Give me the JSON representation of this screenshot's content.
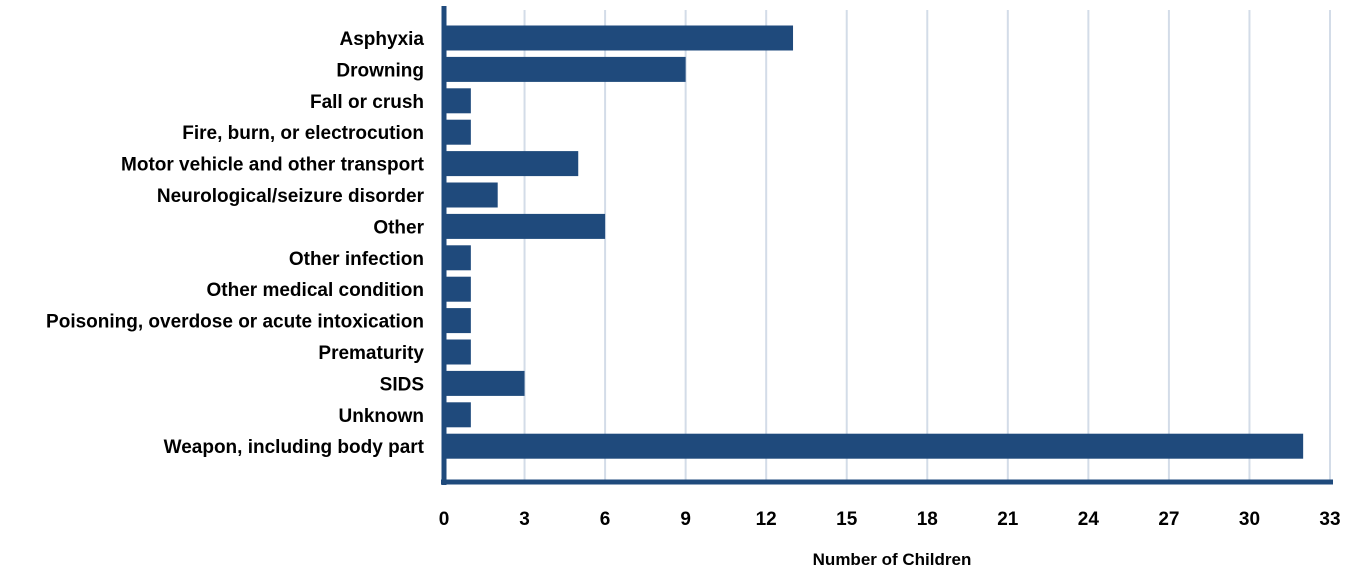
{
  "chart_data": {
    "type": "bar",
    "orientation": "horizontal",
    "categories": [
      "Asphyxia",
      "Drowning",
      "Fall or crush",
      "Fire, burn, or electrocution",
      "Motor vehicle and other transport",
      "Neurological/seizure disorder",
      "Other",
      "Other infection",
      "Other medical condition",
      "Poisoning, overdose or acute intoxication",
      "Prematurity",
      "SIDS",
      "Unknown",
      "Weapon, including body part"
    ],
    "values": [
      13,
      9,
      1,
      1,
      5,
      2,
      6,
      1,
      1,
      1,
      1,
      3,
      1,
      32
    ],
    "xticks": [
      0,
      3,
      6,
      9,
      12,
      15,
      18,
      21,
      24,
      27,
      30,
      33
    ],
    "xlim": [
      0,
      33
    ],
    "xlabel": "Number of Children",
    "ylabel": "",
    "title": "",
    "grid": "vertical",
    "legend": "none",
    "colors": {
      "bar": "#1f4a7c",
      "grid": "#d3dce8",
      "axis": "#1f4a7c"
    }
  }
}
